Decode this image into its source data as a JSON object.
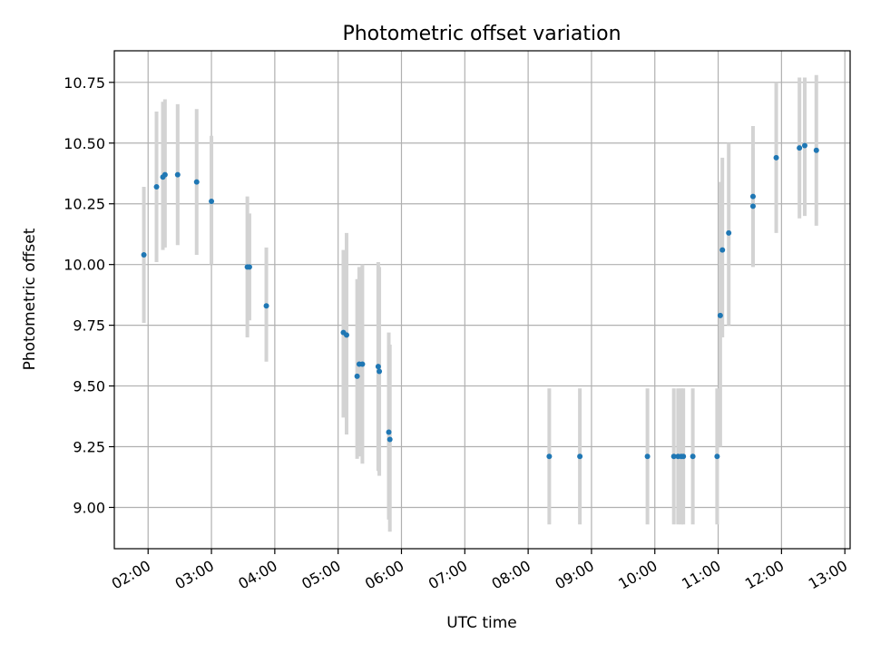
{
  "chart_data": {
    "type": "scatter",
    "title": "Photometric offset variation",
    "xlabel": "UTC time",
    "ylabel": "Photometric offset",
    "xlim": [
      "01:28",
      "13:05"
    ],
    "ylim": [
      8.83,
      10.88
    ],
    "x_ticks": [
      "02:00",
      "03:00",
      "04:00",
      "05:00",
      "06:00",
      "07:00",
      "08:00",
      "09:00",
      "10:00",
      "11:00",
      "12:00",
      "13:00"
    ],
    "y_ticks": [
      "9.00",
      "9.25",
      "9.50",
      "9.75",
      "10.00",
      "10.25",
      "10.50",
      "10.75"
    ],
    "grid": true,
    "colors": {
      "point": "#1f77b4",
      "error_bar": "#d3d3d3"
    },
    "series": [
      {
        "points": [
          {
            "x": "01:56",
            "y": 10.04,
            "low": 9.76,
            "high": 10.32
          },
          {
            "x": "02:08",
            "y": 10.32,
            "low": 10.01,
            "high": 10.63
          },
          {
            "x": "02:14",
            "y": 10.36,
            "low": 10.06,
            "high": 10.67
          },
          {
            "x": "02:16",
            "y": 10.37,
            "low": 10.07,
            "high": 10.68
          },
          {
            "x": "02:28",
            "y": 10.37,
            "low": 10.08,
            "high": 10.66
          },
          {
            "x": "02:46",
            "y": 10.34,
            "low": 10.04,
            "high": 10.64
          },
          {
            "x": "03:00",
            "y": 10.26,
            "low": 10.0,
            "high": 10.53
          },
          {
            "x": "03:34",
            "y": 9.99,
            "low": 9.7,
            "high": 10.28
          },
          {
            "x": "03:36",
            "y": 9.99,
            "low": 9.77,
            "high": 10.21
          },
          {
            "x": "03:52",
            "y": 9.83,
            "low": 9.6,
            "high": 10.07
          },
          {
            "x": "05:05",
            "y": 9.72,
            "low": 9.37,
            "high": 10.06
          },
          {
            "x": "05:08",
            "y": 9.71,
            "low": 9.3,
            "high": 10.13
          },
          {
            "x": "05:18",
            "y": 9.54,
            "low": 9.2,
            "high": 9.94
          },
          {
            "x": "05:20",
            "y": 9.59,
            "low": 9.21,
            "high": 9.99
          },
          {
            "x": "05:23",
            "y": 9.59,
            "low": 9.18,
            "high": 10.0
          },
          {
            "x": "05:38",
            "y": 9.58,
            "low": 9.15,
            "high": 10.01
          },
          {
            "x": "05:39",
            "y": 9.56,
            "low": 9.13,
            "high": 9.99
          },
          {
            "x": "05:48",
            "y": 9.31,
            "low": 8.95,
            "high": 9.72
          },
          {
            "x": "05:49",
            "y": 9.28,
            "low": 8.9,
            "high": 9.67
          },
          {
            "x": "08:20",
            "y": 9.21,
            "low": 8.93,
            "high": 9.49
          },
          {
            "x": "08:49",
            "y": 9.21,
            "low": 8.93,
            "high": 9.49
          },
          {
            "x": "09:53",
            "y": 9.21,
            "low": 8.93,
            "high": 9.49
          },
          {
            "x": "10:18",
            "y": 9.21,
            "low": 8.93,
            "high": 9.49
          },
          {
            "x": "10:22",
            "y": 9.21,
            "low": 8.93,
            "high": 9.49
          },
          {
            "x": "10:25",
            "y": 9.21,
            "low": 8.93,
            "high": 9.49
          },
          {
            "x": "10:27",
            "y": 9.21,
            "low": 8.93,
            "high": 9.49
          },
          {
            "x": "10:36",
            "y": 9.21,
            "low": 8.93,
            "high": 9.49
          },
          {
            "x": "10:59",
            "y": 9.21,
            "low": 8.93,
            "high": 9.49
          },
          {
            "x": "11:02",
            "y": 9.79,
            "low": 9.25,
            "high": 10.34
          },
          {
            "x": "11:04",
            "y": 10.06,
            "low": 9.7,
            "high": 10.44
          },
          {
            "x": "11:10",
            "y": 10.13,
            "low": 9.75,
            "high": 10.5
          },
          {
            "x": "11:33",
            "y": 10.28,
            "low": 9.99,
            "high": 10.57
          },
          {
            "x": "11:33",
            "y": 10.24,
            "low": 10.0,
            "high": 10.48
          },
          {
            "x": "11:55",
            "y": 10.44,
            "low": 10.13,
            "high": 10.75
          },
          {
            "x": "12:17",
            "y": 10.48,
            "low": 10.19,
            "high": 10.77
          },
          {
            "x": "12:22",
            "y": 10.49,
            "low": 10.2,
            "high": 10.77
          },
          {
            "x": "12:33",
            "y": 10.47,
            "low": 10.16,
            "high": 10.78
          }
        ]
      }
    ]
  }
}
